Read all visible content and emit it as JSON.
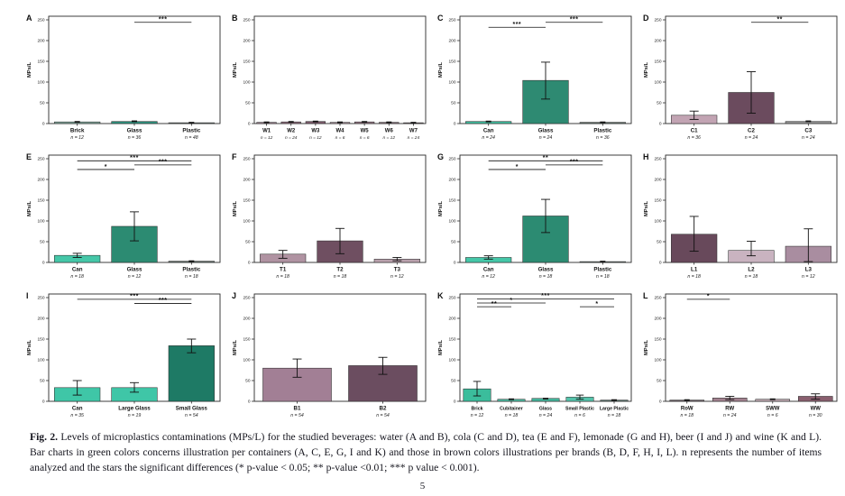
{
  "figure": {
    "y_label": "MPs/L",
    "y_ticks": [
      0,
      50,
      100,
      150,
      200,
      250
    ],
    "ylim": [
      0,
      250
    ],
    "green_accent": "#2C8B72",
    "brown_accent": "#6B4B5E"
  },
  "chart_data": [
    {
      "letter": "A",
      "type": "bar",
      "ylabel": "MPs/L",
      "ylim": [
        0,
        250
      ],
      "categories": [
        "Brick",
        "Glass",
        "Plastic"
      ],
      "n_labels": [
        "n = 12",
        "n = 36",
        "n = 48"
      ],
      "values": [
        4,
        5,
        2
      ],
      "errors": [
        [
          2,
          6
        ],
        [
          3,
          8
        ],
        [
          1,
          3
        ]
      ],
      "colors": [
        "#7FA89B",
        "#2E907C",
        "#5F6E69"
      ],
      "significance": [
        {
          "from": 1,
          "to": 2,
          "y": 244,
          "stars": "***"
        }
      ]
    },
    {
      "letter": "B",
      "type": "bar",
      "ylabel": "MPs/L",
      "ylim": [
        0,
        250
      ],
      "categories": [
        "W1",
        "W2",
        "W3",
        "W4",
        "W5",
        "W6",
        "W7"
      ],
      "n_labels": [
        "n = 12",
        "n = 24",
        "n = 12",
        "n = 6",
        "n = 6",
        "n = 12",
        "n = 24"
      ],
      "values": [
        3,
        4,
        5,
        3,
        4,
        3,
        2
      ],
      "errors": [
        [
          2,
          4
        ],
        [
          2,
          6
        ],
        [
          3,
          7
        ],
        [
          1,
          5
        ],
        [
          2,
          6
        ],
        [
          2,
          4
        ],
        [
          1,
          3
        ]
      ],
      "colors": [
        "#9D8290",
        "#8F6D7D",
        "#7C5A6B",
        "#A98F9B",
        "#937482",
        "#867078",
        "#6F5D66"
      ],
      "significance": []
    },
    {
      "letter": "C",
      "type": "bar",
      "ylabel": "MPs/L",
      "ylim": [
        0,
        250
      ],
      "categories": [
        "Can",
        "Glass",
        "Plastic"
      ],
      "n_labels": [
        "n = 24",
        "n = 24",
        "n = 36"
      ],
      "values": [
        5,
        104,
        3
      ],
      "errors": [
        [
          3,
          7
        ],
        [
          59,
          148
        ],
        [
          2,
          4
        ]
      ],
      "colors": [
        "#3FB89B",
        "#2E8A72",
        "#5F6E69"
      ],
      "significance": [
        {
          "from": 0,
          "to": 1,
          "y": 232,
          "stars": "***"
        },
        {
          "from": 1,
          "to": 2,
          "y": 244,
          "stars": "***"
        }
      ]
    },
    {
      "letter": "D",
      "type": "bar",
      "ylabel": "MPs/L",
      "ylim": [
        0,
        250
      ],
      "categories": [
        "C1",
        "C2",
        "C3"
      ],
      "n_labels": [
        "n = 36",
        "n = 24",
        "n = 24"
      ],
      "values": [
        20,
        75,
        5
      ],
      "errors": [
        [
          10,
          30
        ],
        [
          25,
          125
        ],
        [
          3,
          8
        ]
      ],
      "colors": [
        "#C2A4B3",
        "#6B4B5E",
        "#8F8F8F"
      ],
      "significance": [
        {
          "from": 1,
          "to": 2,
          "y": 244,
          "stars": "**"
        }
      ]
    },
    {
      "letter": "E",
      "type": "bar",
      "ylabel": "MPs/L",
      "ylim": [
        0,
        250
      ],
      "categories": [
        "Can",
        "Glass",
        "Plastic"
      ],
      "n_labels": [
        "n = 18",
        "n = 12",
        "n = 18"
      ],
      "values": [
        17,
        87,
        3
      ],
      "errors": [
        [
          12,
          22
        ],
        [
          52,
          122
        ],
        [
          2,
          4
        ]
      ],
      "colors": [
        "#45C7A8",
        "#2C8B72",
        "#5F6E69"
      ],
      "significance": [
        {
          "from": 0,
          "to": 2,
          "y": 245,
          "stars": "***"
        },
        {
          "from": 1,
          "to": 2,
          "y": 235,
          "stars": "***"
        },
        {
          "from": 0,
          "to": 1,
          "y": 224,
          "stars": "*"
        }
      ]
    },
    {
      "letter": "F",
      "type": "bar",
      "ylabel": "MPs/L",
      "ylim": [
        0,
        250
      ],
      "categories": [
        "T1",
        "T2",
        "T3"
      ],
      "n_labels": [
        "n = 18",
        "n = 18",
        "n = 12"
      ],
      "values": [
        20,
        52,
        8
      ],
      "errors": [
        [
          10,
          29
        ],
        [
          21,
          82
        ],
        [
          4,
          12
        ]
      ],
      "colors": [
        "#B093A2",
        "#6F4F61",
        "#B8A0AC"
      ],
      "significance": []
    },
    {
      "letter": "G",
      "type": "bar",
      "ylabel": "MPs/L",
      "ylim": [
        0,
        250
      ],
      "categories": [
        "Can",
        "Glass",
        "Plastic"
      ],
      "n_labels": [
        "n = 12",
        "n = 18",
        "n = 18"
      ],
      "values": [
        12,
        112,
        2
      ],
      "errors": [
        [
          8,
          16
        ],
        [
          72,
          152
        ],
        [
          1,
          3
        ]
      ],
      "colors": [
        "#45C7A8",
        "#2C8B72",
        "#5F6E69"
      ],
      "significance": [
        {
          "from": 0,
          "to": 2,
          "y": 245,
          "stars": "**"
        },
        {
          "from": 1,
          "to": 2,
          "y": 235,
          "stars": "***"
        },
        {
          "from": 0,
          "to": 1,
          "y": 224,
          "stars": "*"
        }
      ]
    },
    {
      "letter": "H",
      "type": "bar",
      "ylabel": "MPs/L",
      "ylim": [
        0,
        250
      ],
      "categories": [
        "L1",
        "L2",
        "L3"
      ],
      "n_labels": [
        "n = 18",
        "n = 18",
        "n = 12"
      ],
      "values": [
        68,
        29,
        39
      ],
      "errors": [
        [
          27,
          111
        ],
        [
          16,
          51
        ],
        [
          2,
          81
        ]
      ],
      "colors": [
        "#68495B",
        "#C9B3C0",
        "#A98DA0"
      ],
      "significance": []
    },
    {
      "letter": "I",
      "type": "bar",
      "ylabel": "MPs/L",
      "ylim": [
        0,
        250
      ],
      "categories": [
        "Can",
        "Large Glass",
        "Small Glass"
      ],
      "n_labels": [
        "n = 35",
        "n = 19",
        "n = 54"
      ],
      "values": [
        33,
        33,
        134
      ],
      "errors": [
        [
          15,
          50
        ],
        [
          22,
          45
        ],
        [
          117,
          150
        ]
      ],
      "colors": [
        "#3FC6A7",
        "#3FC6A7",
        "#1E7A65"
      ],
      "significance": [
        {
          "from": 0,
          "to": 2,
          "y": 246,
          "stars": "***"
        },
        {
          "from": 1,
          "to": 2,
          "y": 236,
          "stars": "***"
        }
      ]
    },
    {
      "letter": "J",
      "type": "bar",
      "ylabel": "MPs/L",
      "ylim": [
        0,
        250
      ],
      "categories": [
        "B1",
        "B2"
      ],
      "n_labels": [
        "n = 54",
        "n = 54"
      ],
      "values": [
        80,
        86
      ],
      "errors": [
        [
          58,
          102
        ],
        [
          65,
          106
        ]
      ],
      "colors": [
        "#A27F95",
        "#6B4D60"
      ],
      "significance": []
    },
    {
      "letter": "K",
      "type": "bar",
      "ylabel": "MPs/L",
      "ylim": [
        0,
        250
      ],
      "categories": [
        "Brick",
        "Cubitainer",
        "Glass",
        "Small Plastic",
        "Large Plastic"
      ],
      "n_labels": [
        "n = 12",
        "n = 18",
        "n = 24",
        "n = 6",
        "n = 18"
      ],
      "values": [
        30,
        5,
        7,
        10,
        3
      ],
      "errors": [
        [
          13,
          48
        ],
        [
          3,
          7
        ],
        [
          4,
          9
        ],
        [
          5,
          15
        ],
        [
          2,
          4
        ]
      ],
      "colors": [
        "#3BBD9C",
        "#4DB9A0",
        "#44B69C",
        "#55C3AB",
        "#5E7A72"
      ],
      "significance": [
        {
          "from": 0,
          "to": 4,
          "y": 247,
          "stars": "***"
        },
        {
          "from": 0,
          "to": 2,
          "y": 237,
          "stars": "*"
        },
        {
          "from": 0,
          "to": 1,
          "y": 228,
          "stars": "**"
        },
        {
          "from": 3,
          "to": 4,
          "y": 228,
          "stars": "*"
        }
      ]
    },
    {
      "letter": "L",
      "type": "bar",
      "ylabel": "MPs/L",
      "ylim": [
        0,
        250
      ],
      "categories": [
        "RoW",
        "RW",
        "SWW",
        "WW"
      ],
      "n_labels": [
        "n = 18",
        "n = 24",
        "n = 6",
        "n = 30"
      ],
      "values": [
        3,
        8,
        5,
        12
      ],
      "errors": [
        [
          2,
          4
        ],
        [
          4,
          12
        ],
        [
          3,
          7
        ],
        [
          5,
          18
        ]
      ],
      "colors": [
        "#6E6168",
        "#A2818F",
        "#BBA6AE",
        "#8A5F6F"
      ],
      "significance": [
        {
          "from": 0,
          "to": 1,
          "y": 246,
          "stars": "*"
        }
      ]
    }
  ],
  "caption": {
    "tag": "Fig. 2.",
    "text": "Levels of microplastics contaminations (MPs/L) for the studied beverages: water (A and B), cola (C and D), tea (E and F), lemonade (G and H), beer (I and J) and wine (K and L). Bar charts in green colors concerns illustration per containers (A, C, E, G, I and K) and those in brown colors illustrations per brands (B, D, F, H, I, L). n represents the number of items analyzed and the stars the significant differences (* p-value < 0.05; ** p-value <0.01; *** p value < 0.001)."
  },
  "page_number": "5"
}
